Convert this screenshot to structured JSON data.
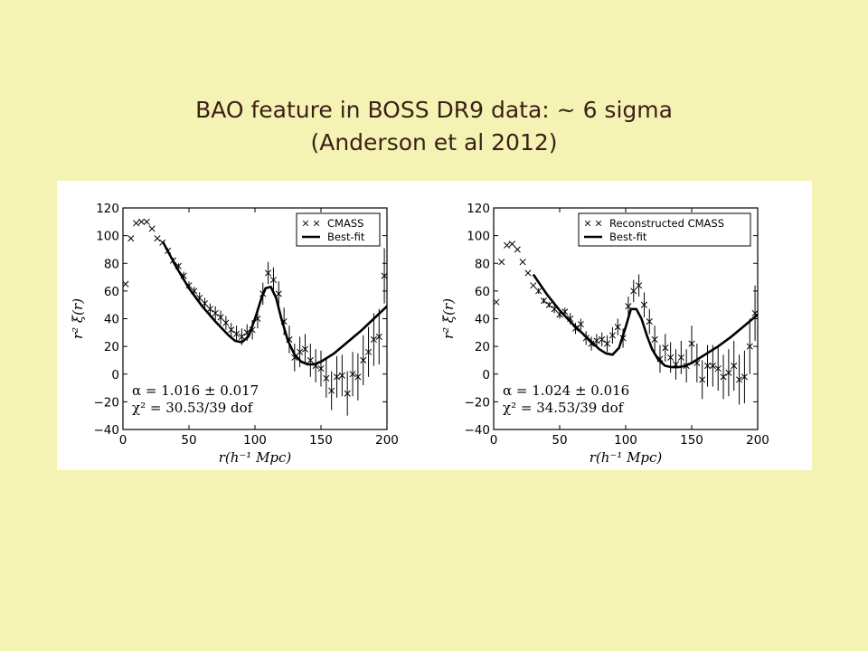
{
  "slide": {
    "title_line1": "BAO feature in BOSS DR9 data:  ~ 6 sigma",
    "title_line2": "(Anderson et al 2012)"
  },
  "colors": {
    "background": "#f4f3b3",
    "title": "#3a1f17",
    "plot_bg": "#ffffff",
    "ink": "#000000"
  },
  "chart_data": [
    {
      "type": "scatter",
      "xlabel": "r(h⁻¹ Mpc)",
      "ylabel": "r² ξ(r)",
      "xlim": [
        0,
        200
      ],
      "ylim": [
        -40,
        120
      ],
      "xticks": [
        0,
        50,
        100,
        150,
        200
      ],
      "yticks": [
        -40,
        -20,
        0,
        20,
        40,
        60,
        80,
        100,
        120
      ],
      "grid": false,
      "legend_position": "top-right",
      "annotation": [
        "α = 1.016 ± 0.017",
        "χ² = 30.53/39 dof"
      ],
      "series": [
        {
          "name": "CMASS",
          "marker": "x",
          "x": [
            2,
            6,
            10,
            14,
            18,
            22,
            26,
            30,
            34,
            38,
            42,
            46,
            50,
            54,
            58,
            62,
            66,
            70,
            74,
            78,
            82,
            86,
            90,
            94,
            98,
            102,
            106,
            110,
            114,
            118,
            122,
            126,
            130,
            134,
            138,
            142,
            146,
            150,
            154,
            158,
            162,
            166,
            170,
            174,
            178,
            182,
            186,
            190,
            194,
            198
          ],
          "y": [
            65,
            98,
            109,
            110,
            110,
            105,
            98,
            95,
            89,
            82,
            78,
            71,
            64,
            60,
            55,
            51,
            47,
            44,
            41,
            37,
            32,
            29,
            27,
            30,
            32,
            40,
            58,
            73,
            68,
            58,
            38,
            25,
            12,
            16,
            18,
            10,
            6,
            4,
            -3,
            -12,
            -2,
            -1,
            -14,
            0,
            -2,
            10,
            16,
            25,
            27,
            71
          ],
          "err": [
            0,
            0,
            0,
            0,
            0,
            0,
            0,
            0,
            2,
            2,
            2,
            3,
            3,
            3,
            4,
            4,
            4,
            5,
            5,
            5,
            5,
            6,
            6,
            6,
            7,
            7,
            8,
            8,
            9,
            9,
            10,
            10,
            10,
            11,
            11,
            12,
            12,
            13,
            14,
            14,
            15,
            15,
            16,
            16,
            17,
            18,
            18,
            19,
            20,
            20
          ]
        },
        {
          "name": "Best-fit",
          "line": true,
          "x": [
            30,
            40,
            50,
            60,
            70,
            80,
            85,
            90,
            95,
            100,
            105,
            108,
            112,
            116,
            120,
            125,
            130,
            135,
            140,
            145,
            150,
            160,
            170,
            180,
            190,
            200
          ],
          "y": [
            96,
            78,
            62,
            49,
            38,
            28,
            24,
            23,
            27,
            40,
            55,
            62,
            63,
            55,
            40,
            24,
            14,
            9,
            7,
            7,
            9,
            15,
            23,
            31,
            40,
            49
          ]
        }
      ]
    },
    {
      "type": "scatter",
      "xlabel": "r(h⁻¹ Mpc)",
      "ylabel": "r² ξ(r)",
      "xlim": [
        0,
        200
      ],
      "ylim": [
        -40,
        120
      ],
      "xticks": [
        0,
        50,
        100,
        150,
        200
      ],
      "yticks": [
        -40,
        -20,
        0,
        20,
        40,
        60,
        80,
        100,
        120
      ],
      "grid": false,
      "legend_position": "top-right",
      "annotation": [
        "α = 1.024 ± 0.016",
        "χ² = 34.53/39 dof"
      ],
      "series": [
        {
          "name": "Reconstructed CMASS",
          "marker": "x",
          "x": [
            2,
            6,
            10,
            14,
            18,
            22,
            26,
            30,
            34,
            38,
            42,
            46,
            50,
            54,
            58,
            62,
            66,
            70,
            74,
            78,
            82,
            86,
            90,
            94,
            98,
            102,
            106,
            110,
            114,
            118,
            122,
            126,
            130,
            134,
            138,
            142,
            146,
            150,
            154,
            158,
            162,
            166,
            170,
            174,
            178,
            182,
            186,
            190,
            194,
            198
          ],
          "y": [
            52,
            81,
            93,
            94,
            90,
            81,
            73,
            64,
            60,
            53,
            50,
            47,
            43,
            45,
            40,
            33,
            36,
            26,
            22,
            24,
            25,
            22,
            28,
            34,
            26,
            49,
            60,
            64,
            50,
            38,
            25,
            11,
            19,
            12,
            7,
            12,
            6,
            22,
            8,
            -4,
            6,
            6,
            4,
            -2,
            1,
            6,
            -4,
            -2,
            20,
            44
          ],
          "err": [
            0,
            0,
            0,
            0,
            0,
            0,
            0,
            0,
            2,
            2,
            2,
            3,
            3,
            3,
            4,
            4,
            4,
            5,
            5,
            5,
            5,
            6,
            6,
            6,
            7,
            7,
            8,
            8,
            9,
            9,
            10,
            10,
            10,
            11,
            11,
            12,
            12,
            13,
            14,
            14,
            15,
            15,
            16,
            16,
            17,
            18,
            18,
            19,
            20,
            20
          ]
        },
        {
          "name": "Best-fit",
          "line": true,
          "x": [
            30,
            40,
            50,
            60,
            70,
            80,
            85,
            90,
            95,
            100,
            104,
            108,
            112,
            116,
            120,
            125,
            130,
            135,
            140,
            145,
            150,
            160,
            170,
            180,
            190,
            200
          ],
          "y": [
            72,
            58,
            46,
            36,
            27,
            18,
            15,
            14,
            19,
            34,
            47,
            47,
            40,
            28,
            18,
            10,
            6,
            5,
            5,
            6,
            8,
            14,
            20,
            27,
            35,
            43
          ]
        }
      ]
    }
  ]
}
